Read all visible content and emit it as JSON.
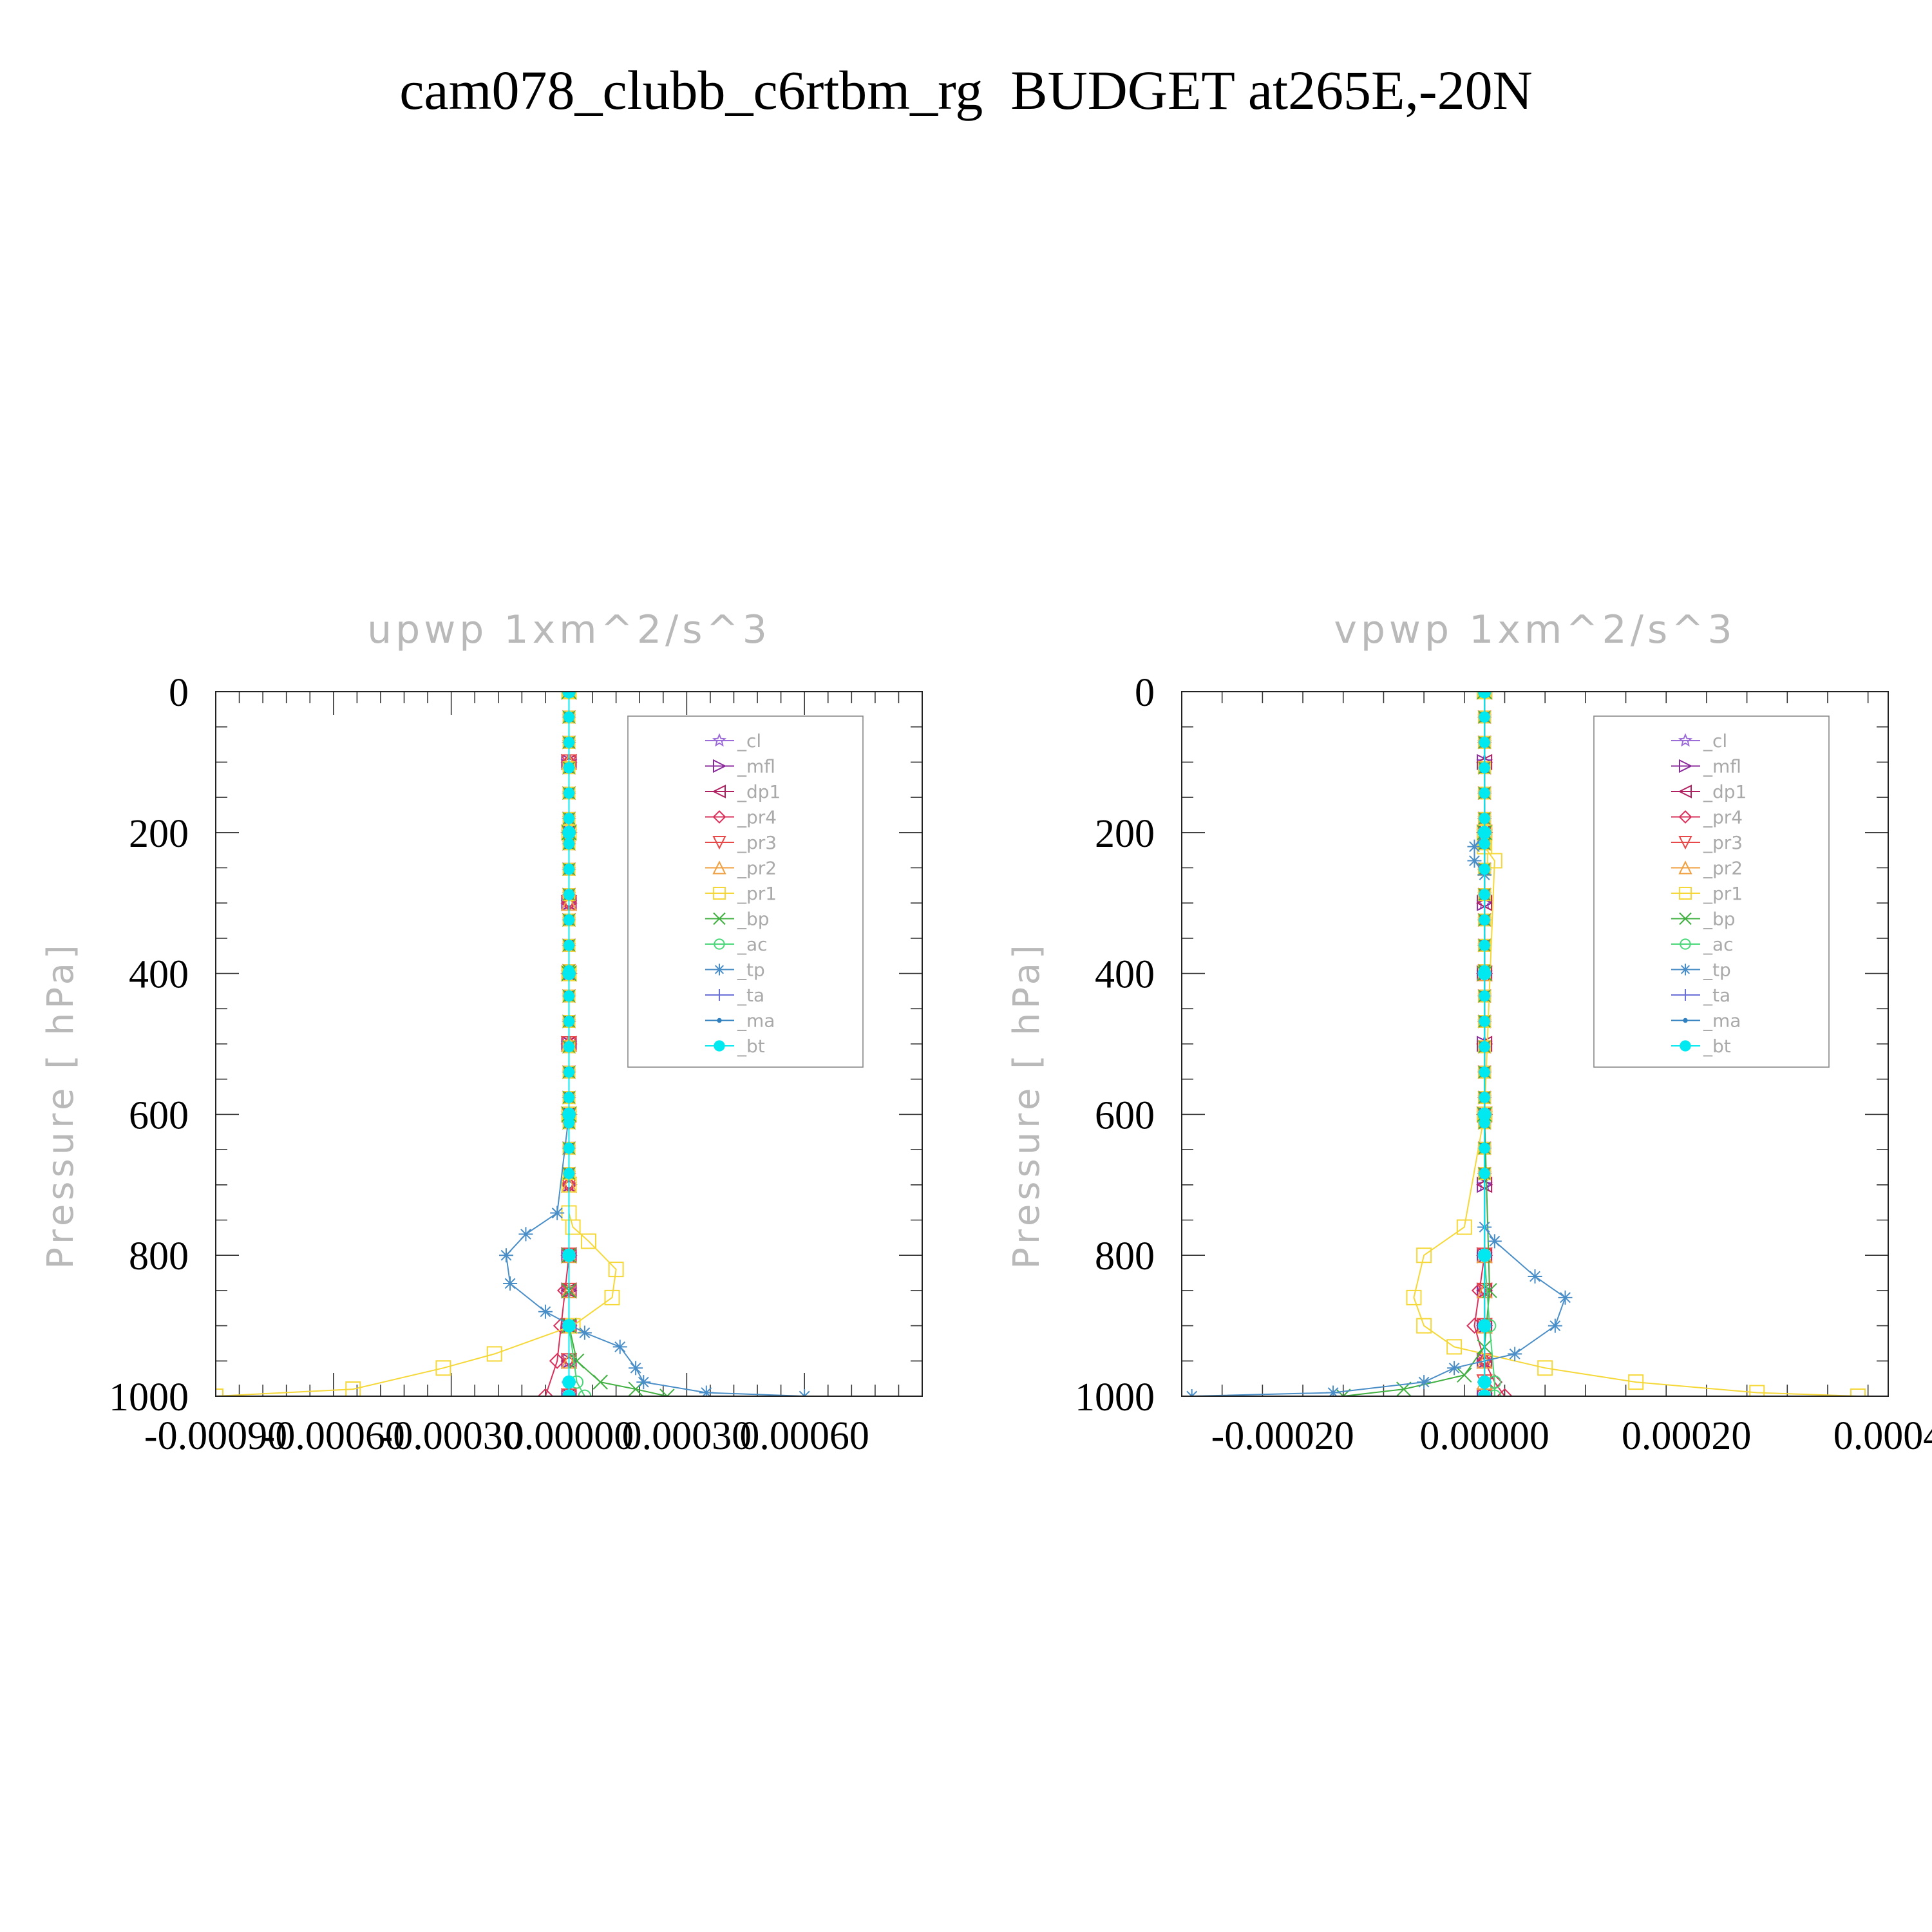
{
  "title": "cam078_clubb_c6rtbm_rg  BUDGET at265E,-20N",
  "chart_data": [
    {
      "type": "line",
      "title": "upwp    1xm^2/s^3",
      "ylabel": "Pressure  [ hPa]",
      "xlabel": "",
      "ylim": [
        0,
        1000
      ],
      "y_inverted": true,
      "y_ticks": [
        "0",
        "200",
        "400",
        "600",
        "800",
        "1000"
      ],
      "xlim": [
        -0.0009,
        0.0009
      ],
      "x_ticks": [
        -0.0009,
        -0.0006,
        -0.0003,
        0.0,
        0.0003,
        0.0006
      ],
      "x_tick_labels": [
        "-0.00090",
        "-0.00060",
        "-0.00030",
        "0.00000",
        "0.00030",
        "0.00060"
      ],
      "legend_position": "top-right",
      "series": [
        {
          "name": "_cl",
          "color": "#9c6cd8",
          "marker": "star",
          "x": [
            0,
            0,
            0,
            0,
            0,
            0,
            0,
            0,
            0,
            0,
            0,
            0,
            0
          ],
          "y": [
            0,
            100,
            200,
            300,
            400,
            500,
            600,
            700,
            800,
            850,
            900,
            950,
            1000
          ]
        },
        {
          "name": "_mfl",
          "color": "#8a2a9a",
          "marker": "tri-right",
          "x": [
            0,
            0,
            0,
            0,
            0,
            0,
            0,
            0,
            0,
            0,
            0,
            0,
            0
          ],
          "y": [
            0,
            100,
            200,
            300,
            400,
            500,
            600,
            700,
            800,
            850,
            900,
            950,
            1000
          ]
        },
        {
          "name": "_dp1",
          "color": "#b02060",
          "marker": "tri-left",
          "x": [
            0,
            0,
            0,
            0,
            0,
            0,
            0,
            0,
            0,
            0,
            0,
            0,
            0
          ],
          "y": [
            0,
            100,
            200,
            300,
            400,
            500,
            600,
            700,
            800,
            850,
            900,
            950,
            1000
          ]
        },
        {
          "name": "_pr4",
          "color": "#d8305a",
          "marker": "diamond",
          "x": [
            0,
            0,
            0,
            0,
            0,
            0,
            0,
            0,
            0,
            -1e-05,
            -2e-05,
            -3e-05,
            -6e-05
          ],
          "y": [
            0,
            100,
            200,
            300,
            400,
            500,
            600,
            700,
            800,
            850,
            900,
            950,
            1000
          ]
        },
        {
          "name": "_pr3",
          "color": "#e84848",
          "marker": "tri-down",
          "x": [
            0,
            0,
            0,
            0,
            0,
            0,
            0,
            0,
            0,
            0,
            0,
            0,
            0
          ],
          "y": [
            0,
            100,
            200,
            300,
            400,
            500,
            600,
            700,
            800,
            850,
            900,
            950,
            1000
          ]
        },
        {
          "name": "_pr2",
          "color": "#f0a040",
          "marker": "tri-up",
          "x": [
            0,
            0,
            0,
            0,
            0,
            0,
            0,
            0,
            0,
            0,
            0,
            0,
            0
          ],
          "y": [
            0,
            100,
            200,
            300,
            400,
            500,
            600,
            700,
            800,
            850,
            900,
            950,
            1000
          ]
        },
        {
          "name": "_pr1",
          "color": "#f5d838",
          "marker": "square",
          "x": [
            0,
            0,
            0,
            0,
            0,
            0,
            1e-05,
            5e-05,
            0.00012,
            0.00011,
            1e-05,
            -0.00019,
            -0.00032,
            -0.00055,
            -0.0009
          ],
          "y": [
            0,
            200,
            400,
            600,
            700,
            740,
            760,
            780,
            820,
            860,
            900,
            940,
            960,
            990,
            1000
          ]
        },
        {
          "name": "_bp",
          "color": "#40b040",
          "marker": "x",
          "x": [
            0,
            0,
            0,
            0,
            0,
            0,
            0,
            2e-05,
            8e-05,
            0.00017,
            0.00025
          ],
          "y": [
            0,
            200,
            400,
            600,
            800,
            850,
            900,
            950,
            980,
            990,
            1000
          ]
        },
        {
          "name": "_ac",
          "color": "#48d878",
          "marker": "circle",
          "x": [
            0,
            0,
            0,
            0,
            0,
            0,
            2e-05,
            4e-05
          ],
          "y": [
            0,
            200,
            400,
            600,
            800,
            900,
            980,
            1000
          ]
        },
        {
          "name": "_tp",
          "color": "#4a8ec8",
          "marker": "asterisk",
          "x": [
            0,
            0,
            0,
            0,
            -3e-05,
            -0.00011,
            -0.00016,
            -0.00015,
            -6e-05,
            4e-05,
            0.00013,
            0.00017,
            0.00019,
            0.00035,
            0.0006
          ],
          "y": [
            0,
            200,
            400,
            600,
            740,
            770,
            800,
            840,
            880,
            910,
            930,
            960,
            980,
            995,
            1000
          ]
        },
        {
          "name": "_ta",
          "color": "#6a70d8",
          "marker": "plus",
          "x": [
            0,
            0,
            0,
            0,
            0,
            0,
            0,
            0
          ],
          "y": [
            0,
            200,
            400,
            600,
            800,
            900,
            980,
            1000
          ]
        },
        {
          "name": "_ma",
          "color": "#3080c0",
          "marker": "dot",
          "x": [
            0,
            0,
            0,
            0,
            0,
            0,
            0,
            0
          ],
          "y": [
            0,
            200,
            400,
            600,
            800,
            900,
            980,
            1000
          ]
        },
        {
          "name": "_bt",
          "color": "#00e8f0",
          "marker": "filled-circle",
          "x": [
            0,
            0,
            0,
            0,
            0,
            0,
            0,
            0
          ],
          "y": [
            0,
            200,
            400,
            600,
            800,
            900,
            980,
            1000
          ]
        }
      ]
    },
    {
      "type": "line",
      "title": "vpwp    1xm^2/s^3",
      "ylabel": "Pressure  [ hPa]",
      "xlabel": "",
      "ylim": [
        0,
        1000
      ],
      "y_inverted": true,
      "y_ticks": [
        "0",
        "200",
        "400",
        "600",
        "800",
        "1000"
      ],
      "xlim": [
        -0.0003,
        0.0004
      ],
      "x_ticks": [
        -0.0002,
        0.0,
        0.0002,
        0.0004
      ],
      "x_tick_labels": [
        "-0.00020",
        "0.00000",
        "0.00020",
        "0.0004"
      ],
      "legend_position": "top-right",
      "series": [
        {
          "name": "_cl",
          "color": "#9c6cd8",
          "marker": "star",
          "x": [
            0,
            0,
            0,
            0,
            0,
            0,
            0,
            0,
            0,
            0,
            0,
            0,
            0
          ],
          "y": [
            0,
            100,
            200,
            300,
            400,
            500,
            600,
            700,
            800,
            850,
            900,
            950,
            1000
          ]
        },
        {
          "name": "_mfl",
          "color": "#8a2a9a",
          "marker": "tri-right",
          "x": [
            0,
            0,
            0,
            0,
            0,
            0,
            0,
            0,
            0,
            0,
            0,
            0,
            0
          ],
          "y": [
            0,
            100,
            200,
            300,
            400,
            500,
            600,
            700,
            800,
            850,
            900,
            950,
            1000
          ]
        },
        {
          "name": "_dp1",
          "color": "#b02060",
          "marker": "tri-left",
          "x": [
            0,
            0,
            0,
            0,
            0,
            0,
            0,
            0,
            0,
            0,
            0,
            0,
            0
          ],
          "y": [
            0,
            100,
            200,
            300,
            400,
            500,
            600,
            700,
            800,
            850,
            900,
            950,
            1000
          ]
        },
        {
          "name": "_pr4",
          "color": "#d8305a",
          "marker": "diamond",
          "x": [
            0,
            0,
            0,
            0,
            0,
            -5e-06,
            -1e-05,
            0,
            1e-05,
            2e-05
          ],
          "y": [
            0,
            200,
            400,
            600,
            800,
            850,
            900,
            950,
            980,
            1000
          ]
        },
        {
          "name": "_pr3",
          "color": "#e84848",
          "marker": "tri-down",
          "x": [
            0,
            0,
            0,
            0,
            0,
            0,
            0,
            0,
            0,
            0
          ],
          "y": [
            0,
            200,
            400,
            600,
            800,
            850,
            900,
            950,
            980,
            1000
          ]
        },
        {
          "name": "_pr2",
          "color": "#f0a040",
          "marker": "tri-up",
          "x": [
            0,
            0,
            0,
            0,
            0,
            0,
            0,
            0,
            0,
            0
          ],
          "y": [
            0,
            200,
            400,
            600,
            800,
            850,
            900,
            950,
            980,
            1000
          ]
        },
        {
          "name": "_pr1",
          "color": "#f5d838",
          "marker": "square",
          "x": [
            0,
            0,
            0,
            1e-05,
            0,
            -2e-05,
            -6e-05,
            -7e-05,
            -6e-05,
            -3e-05,
            6e-05,
            0.00015,
            0.00027,
            0.00037
          ],
          "y": [
            0,
            200,
            220,
            240,
            600,
            760,
            800,
            860,
            900,
            930,
            960,
            980,
            995,
            1000
          ]
        },
        {
          "name": "_bp",
          "color": "#40b040",
          "marker": "x",
          "x": [
            0,
            0,
            0,
            0,
            5e-06,
            0,
            -2e-05,
            -8e-05,
            -0.00014
          ],
          "y": [
            0,
            200,
            400,
            600,
            850,
            930,
            970,
            990,
            1000
          ]
        },
        {
          "name": "_ac",
          "color": "#48d878",
          "marker": "circle",
          "x": [
            0,
            0,
            0,
            0,
            0,
            5e-06,
            1e-05,
            1e-05
          ],
          "y": [
            0,
            200,
            400,
            600,
            800,
            900,
            980,
            1000
          ]
        },
        {
          "name": "_tp",
          "color": "#4a8ec8",
          "marker": "asterisk",
          "x": [
            0,
            0,
            -1e-05,
            -1e-05,
            0,
            0,
            0,
            1e-05,
            5e-05,
            8e-05,
            7e-05,
            3e-05,
            -3e-05,
            -6e-05,
            -0.00015,
            -0.00029
          ],
          "y": [
            0,
            200,
            220,
            240,
            260,
            600,
            760,
            780,
            830,
            860,
            900,
            940,
            960,
            980,
            995,
            1000
          ]
        },
        {
          "name": "_ta",
          "color": "#6a70d8",
          "marker": "plus",
          "x": [
            0,
            0,
            0,
            0,
            0,
            0,
            0,
            0
          ],
          "y": [
            0,
            200,
            400,
            600,
            800,
            900,
            980,
            1000
          ]
        },
        {
          "name": "_ma",
          "color": "#3080c0",
          "marker": "dot",
          "x": [
            0,
            0,
            0,
            0,
            0,
            0,
            0,
            0
          ],
          "y": [
            0,
            200,
            400,
            600,
            800,
            900,
            980,
            1000
          ]
        },
        {
          "name": "_bt",
          "color": "#00e8f0",
          "marker": "filled-circle",
          "x": [
            0,
            0,
            0,
            0,
            0,
            0,
            0,
            0
          ],
          "y": [
            0,
            200,
            400,
            600,
            800,
            900,
            980,
            1000
          ]
        }
      ]
    }
  ]
}
